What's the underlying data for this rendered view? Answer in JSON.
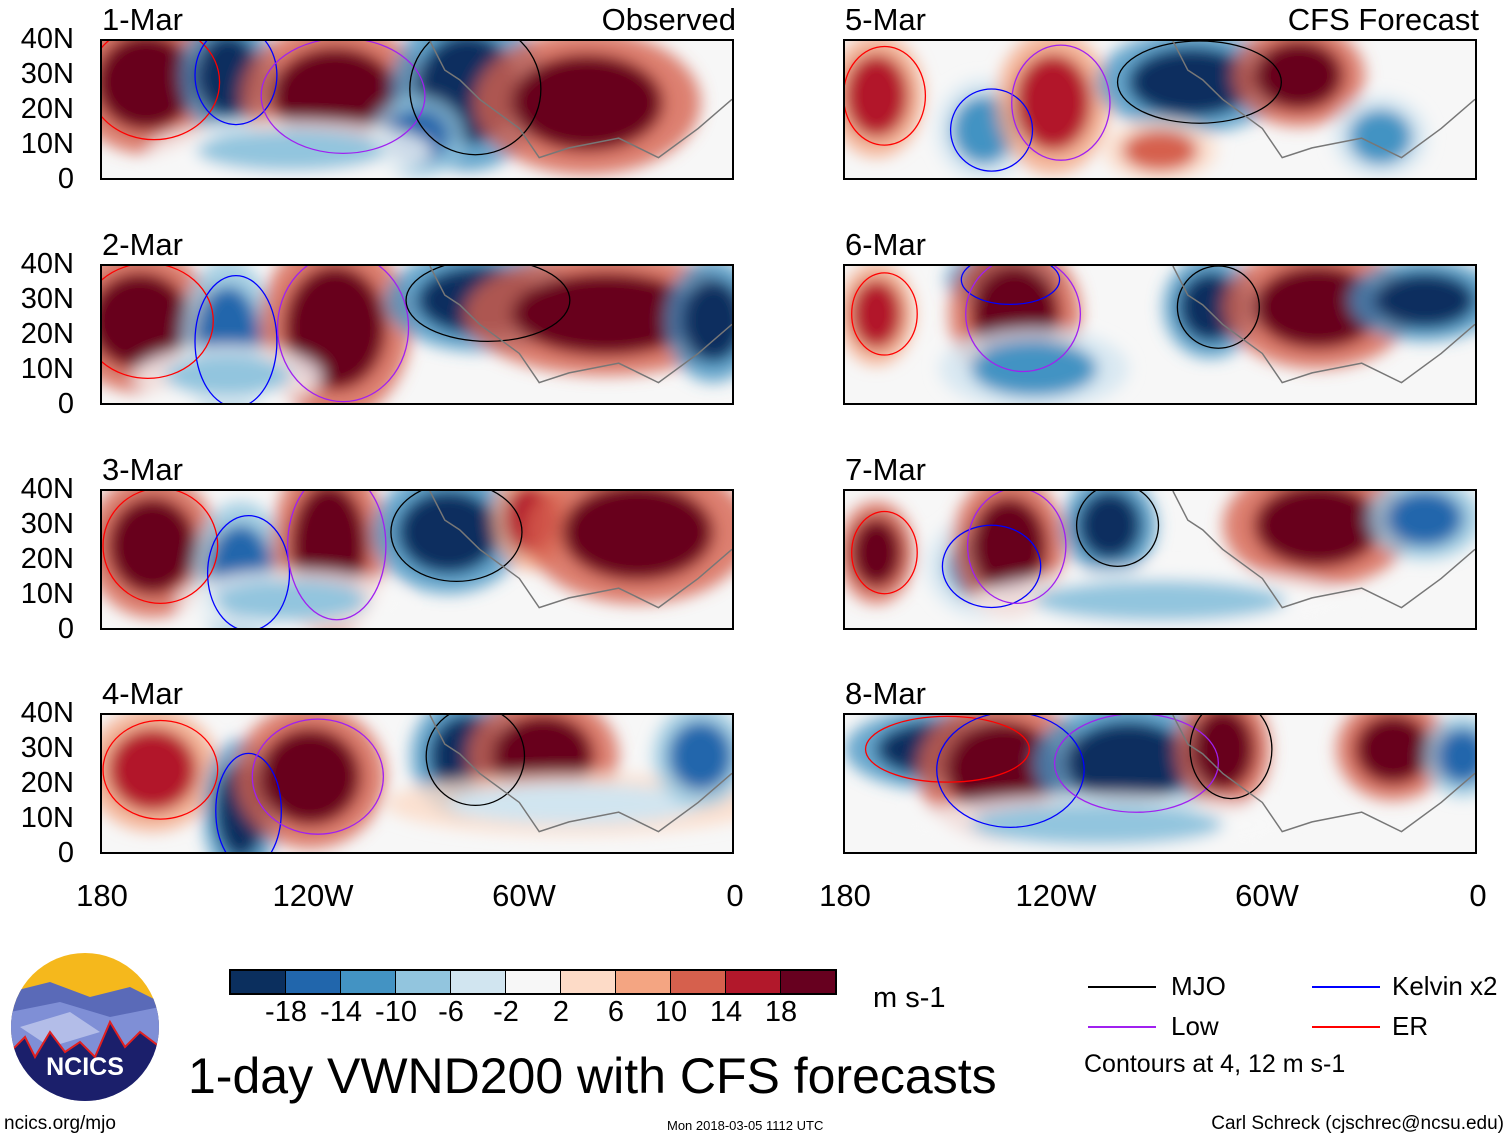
{
  "left_column": {
    "label": "Observed",
    "panels": [
      "1-Mar",
      "2-Mar",
      "3-Mar",
      "4-Mar"
    ]
  },
  "right_column": {
    "label": "CFS Forecast",
    "panels": [
      "5-Mar",
      "6-Mar",
      "7-Mar",
      "8-Mar"
    ]
  },
  "lat_ticks": [
    "40N",
    "30N",
    "20N",
    "10N",
    "0"
  ],
  "lon_ticks": [
    "180",
    "120W",
    "60W",
    "0"
  ],
  "colorbar": {
    "colors": [
      "#0b2f5e",
      "#2166ac",
      "#4393c3",
      "#92c5de",
      "#d1e5f0",
      "#f7f7f7",
      "#fddbc7",
      "#f4a582",
      "#d6604d",
      "#b2182b",
      "#67001f"
    ],
    "labels": [
      "-18",
      "-14",
      "-10",
      "-6",
      "-2",
      "2",
      "6",
      "10",
      "14",
      "18"
    ],
    "units": "m s-1"
  },
  "legend": {
    "items": [
      {
        "label": "MJO",
        "color": "#000000"
      },
      {
        "label": "Kelvin x2",
        "color": "#0000ff"
      },
      {
        "label": "Low",
        "color": "#a020f0"
      },
      {
        "label": "ER",
        "color": "#ff0000"
      }
    ],
    "note": "Contours at 4, 12 m s-1"
  },
  "title": "1-day VWND200 with CFS forecasts",
  "logo_text": "NCICS",
  "footer": {
    "left": "ncics.org/mjo",
    "center": "Mon 2018-03-05 1112 UTC",
    "right": "Carl Schreck (cjschrec@ncsu.edu)"
  }
}
